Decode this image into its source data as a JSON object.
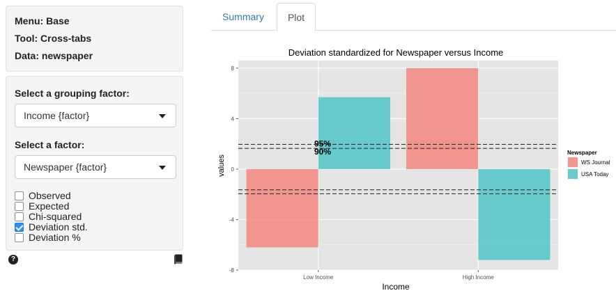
{
  "sidebar": {
    "info": {
      "menu": "Menu: Base",
      "tool": "Tool: Cross-tabs",
      "data": "Data: newspaper"
    },
    "grouping": {
      "label": "Select a grouping factor:",
      "selected": "Income {factor}"
    },
    "factor": {
      "label": "Select a factor:",
      "selected": "Newspaper {factor}"
    },
    "checkboxes": [
      {
        "label": "Observed",
        "checked": false
      },
      {
        "label": "Expected",
        "checked": false
      },
      {
        "label": "Chi-squared",
        "checked": false
      },
      {
        "label": "Deviation std.",
        "checked": true
      },
      {
        "label": "Deviation %",
        "checked": false
      }
    ],
    "help_icon": "?",
    "icons": {
      "help": "question-circle-icon",
      "book": "book-icon"
    }
  },
  "tabs": [
    {
      "label": "Summary",
      "active": false
    },
    {
      "label": "Plot",
      "active": true
    }
  ],
  "colors": {
    "ws_journal": "#F28E87",
    "usa_today": "#5CC9CC",
    "panel_bg": "#E5E5E5",
    "link": "#337ab7"
  },
  "chart_data": {
    "type": "bar",
    "title": "Deviation standardized for Newspaper versus Income",
    "xlabel": "Income",
    "ylabel": "values",
    "categories": [
      "Low Income",
      "High Income"
    ],
    "series": [
      {
        "name": "WS Journal",
        "values": [
          -6.2,
          8.0
        ]
      },
      {
        "name": "USA Today",
        "values": [
          5.7,
          -7.2
        ]
      }
    ],
    "ylim": [
      -8,
      8.6
    ],
    "yticks": [
      -8,
      -4,
      0,
      4,
      8
    ],
    "ytick_labels": [
      "-8",
      "-4",
      "0",
      "4",
      "8"
    ],
    "reference_lines": [
      1.96,
      1.64,
      -1.64,
      -1.96
    ],
    "annotations": [
      {
        "label": "95%",
        "y": 1.96
      },
      {
        "label": "90%",
        "y": 1.64
      }
    ],
    "legend": {
      "title": "Newspaper",
      "position": "right"
    },
    "grid": true
  }
}
